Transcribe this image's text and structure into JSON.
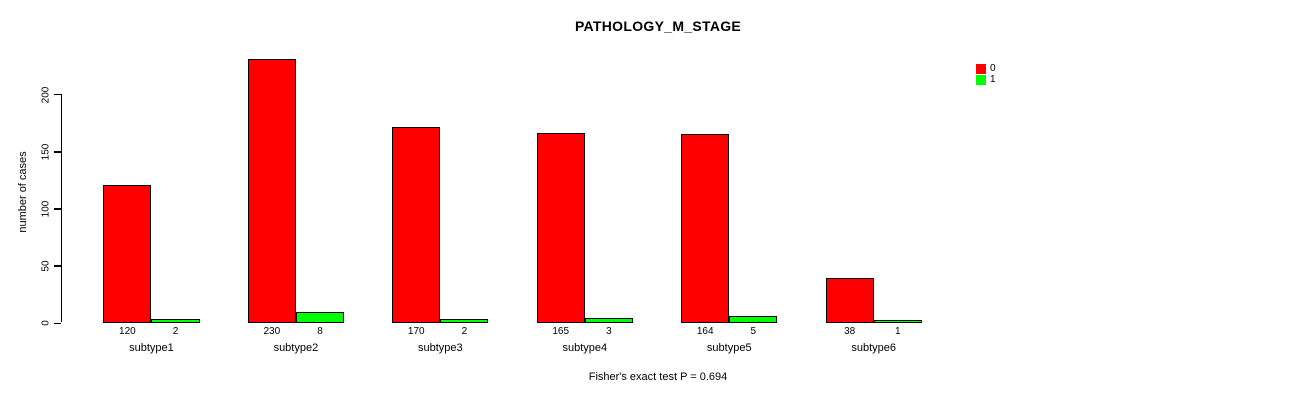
{
  "title": "PATHOLOGY_M_STAGE",
  "y_axis": {
    "label": "number of cases",
    "ticks": [
      0,
      50,
      100,
      150,
      200
    ]
  },
  "footer": "Fisher's exact test P = 0.694",
  "legend": {
    "items": [
      {
        "label": "0",
        "color": "#FF0000"
      },
      {
        "label": "1",
        "color": "#00FF00"
      }
    ]
  },
  "colors": {
    "series0": "#FF0000",
    "series1": "#00FF00",
    "axis": "#000000",
    "background": "#FFFFFF"
  },
  "chart_data": {
    "type": "bar",
    "title": "PATHOLOGY_M_STAGE",
    "xlabel": "",
    "ylabel": "number of cases",
    "categories": [
      "subtype1",
      "subtype2",
      "subtype3",
      "subtype4",
      "subtype5",
      "subtype6"
    ],
    "series": [
      {
        "name": "0",
        "color": "#FF0000",
        "values": [
          120,
          230,
          170,
          165,
          164,
          38
        ]
      },
      {
        "name": "1",
        "color": "#00FF00",
        "values": [
          2,
          8,
          2,
          3,
          5,
          1
        ]
      }
    ],
    "value_labels_shown": true,
    "ylim": [
      0,
      200
    ],
    "yticks": [
      0,
      50,
      100,
      150,
      200
    ],
    "grid": false,
    "legend_position": "top-right",
    "annotation": "Fisher's exact test P = 0.694"
  }
}
